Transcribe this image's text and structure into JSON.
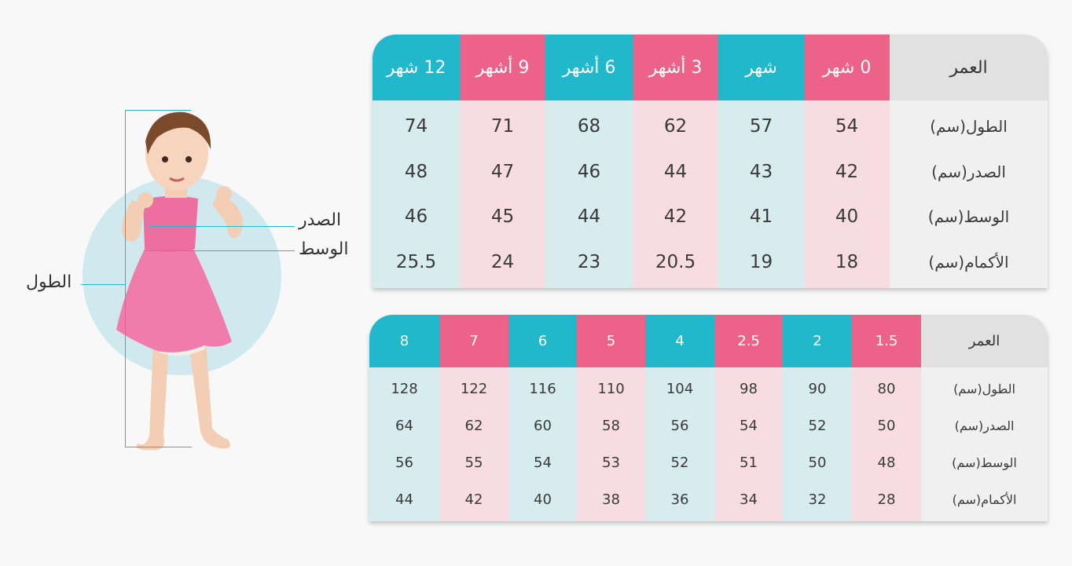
{
  "figure": {
    "labels": {
      "chest": "الصدر",
      "waist": "الوسط",
      "length": "الطول"
    }
  },
  "table_infant": {
    "header_label": "العمر",
    "row_labels": [
      "الطول(سم)",
      "الصدر(سم)",
      "الوسط(سم)",
      "الأكمام(سم)"
    ],
    "columns": [
      {
        "age": "0 شهر",
        "color": "pink",
        "values": [
          "54",
          "42",
          "40",
          "18"
        ]
      },
      {
        "age": "شهر",
        "color": "teal",
        "values": [
          "57",
          "43",
          "41",
          "19"
        ]
      },
      {
        "age": "3 أشهر",
        "color": "pink",
        "values": [
          "62",
          "44",
          "42",
          "20.5"
        ]
      },
      {
        "age": "6 أشهر",
        "color": "teal",
        "values": [
          "68",
          "46",
          "44",
          "23"
        ]
      },
      {
        "age": "9 أشهر",
        "color": "pink",
        "values": [
          "71",
          "47",
          "45",
          "24"
        ]
      },
      {
        "age": "12 شهر",
        "color": "teal",
        "values": [
          "74",
          "48",
          "46",
          "25.5"
        ]
      }
    ]
  },
  "table_child": {
    "header_label": "العمر",
    "row_labels": [
      "الطول(سم)",
      "الصدر(سم)",
      "الوسط(سم)",
      "الأكمام(سم)"
    ],
    "columns": [
      {
        "age": "1.5",
        "color": "pink",
        "values": [
          "80",
          "50",
          "48",
          "28"
        ]
      },
      {
        "age": "2",
        "color": "teal",
        "values": [
          "90",
          "52",
          "50",
          "32"
        ]
      },
      {
        "age": "2.5",
        "color": "pink",
        "values": [
          "98",
          "54",
          "51",
          "34"
        ]
      },
      {
        "age": "4",
        "color": "teal",
        "values": [
          "104",
          "56",
          "52",
          "36"
        ]
      },
      {
        "age": "5",
        "color": "pink",
        "values": [
          "110",
          "58",
          "53",
          "38"
        ]
      },
      {
        "age": "6",
        "color": "teal",
        "values": [
          "116",
          "60",
          "54",
          "40"
        ]
      },
      {
        "age": "7",
        "color": "pink",
        "values": [
          "122",
          "62",
          "55",
          "42"
        ]
      },
      {
        "age": "8",
        "color": "teal",
        "values": [
          "128",
          "64",
          "56",
          "44"
        ]
      }
    ]
  },
  "colors": {
    "teal_header": "#22b8cc",
    "teal_cell": "#d7ecee",
    "pink_header": "#ec6289",
    "pink_cell": "#f7dde3",
    "label_header": "#e1e1e1",
    "label_cell": "#f0f0f0"
  }
}
